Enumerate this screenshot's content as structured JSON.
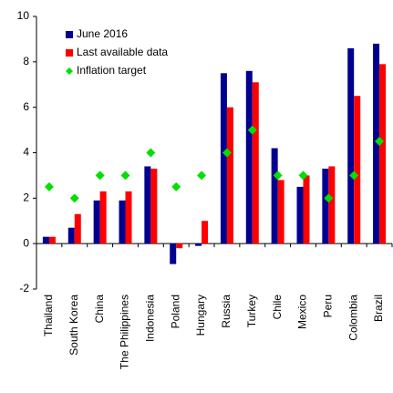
{
  "chart_data": {
    "type": "bar",
    "categories": [
      "Thailand",
      "South Korea",
      "China",
      "The Philippines",
      "Indonesia",
      "Poland",
      "Hungary",
      "Russia",
      "Turkey",
      "Chile",
      "Mexico",
      "Peru",
      "Colombia",
      "Brazil"
    ],
    "series": [
      {
        "name": "June 2016",
        "color": "#000090",
        "values": [
          0.3,
          0.7,
          1.9,
          1.9,
          3.4,
          -0.9,
          -0.1,
          7.5,
          7.6,
          4.2,
          2.5,
          3.3,
          8.6,
          8.8
        ]
      },
      {
        "name": "Last available data",
        "color": "#ff0000",
        "values": [
          0.3,
          1.3,
          2.3,
          2.3,
          3.3,
          -0.2,
          1.0,
          6.0,
          7.1,
          2.8,
          3.0,
          3.4,
          6.5,
          7.9
        ]
      },
      {
        "name": "Inflation target",
        "color": "#00e000",
        "marker": "diamond",
        "values": [
          2.5,
          2.0,
          3.0,
          3.0,
          4.0,
          2.5,
          3.0,
          4.0,
          5.0,
          3.0,
          3.0,
          2.0,
          3.0,
          4.5
        ]
      }
    ],
    "ylim": [
      -2,
      10
    ],
    "yticks": [
      -2,
      0,
      2,
      4,
      6,
      8,
      10
    ],
    "grid": false,
    "legend": "top-left"
  }
}
